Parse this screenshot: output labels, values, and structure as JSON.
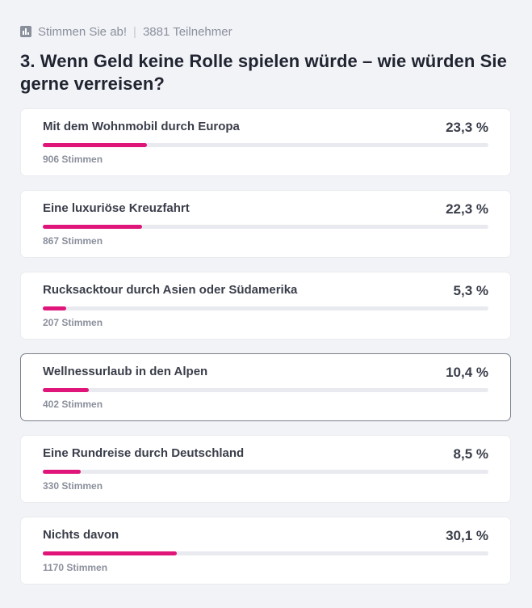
{
  "header": {
    "vote_label": "Stimmen Sie ab!",
    "separator": "|",
    "participants": "3881 Teilnehmer",
    "icon": "bar-chart-icon"
  },
  "question": {
    "title": "3. Wenn Geld keine Rolle spielen würde – wie würden Sie gerne verreisen?"
  },
  "colors": {
    "accent": "#e0157a",
    "track": "#e8eaf0"
  },
  "options": [
    {
      "label": "Mit dem Wohnmobil durch Europa",
      "percent_text": "23,3 %",
      "votes_text": "906 Stimmen",
      "percent": 23.3,
      "selected": false
    },
    {
      "label": "Eine luxuriöse Kreuzfahrt",
      "percent_text": "22,3 %",
      "votes_text": "867 Stimmen",
      "percent": 22.3,
      "selected": false
    },
    {
      "label": "Rucksacktour durch Asien oder Südamerika",
      "percent_text": "5,3 %",
      "votes_text": "207 Stimmen",
      "percent": 5.3,
      "selected": false
    },
    {
      "label": "Wellnessurlaub in den Alpen",
      "percent_text": "10,4 %",
      "votes_text": "402 Stimmen",
      "percent": 10.4,
      "selected": true
    },
    {
      "label": "Eine Rundreise durch Deutschland",
      "percent_text": "8,5 %",
      "votes_text": "330 Stimmen",
      "percent": 8.5,
      "selected": false
    },
    {
      "label": "Nichts davon",
      "percent_text": "30,1 %",
      "votes_text": "1170 Stimmen",
      "percent": 30.1,
      "selected": false
    }
  ]
}
